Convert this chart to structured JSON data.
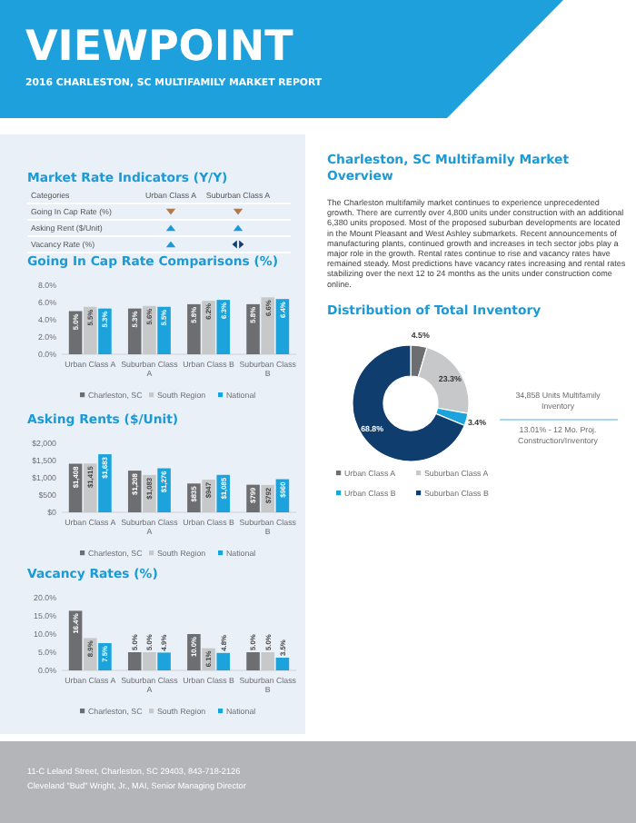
{
  "chart_data": [
    {
      "type": "other",
      "title": "VIEWPOINT",
      "subtitle": "2016 CHARLESTON, SC MULTIFAMILY MARKET REPORT"
    },
    {
      "type": "other",
      "title": "Market Rate Indicators (Y/Y)",
      "annotations": [
        "Categories",
        "Urban Class A",
        "Suburban Class A",
        "Going In Cap Rate (%)",
        "Asking Rent ($/Unit)",
        "Vacancy Rate (%)"
      ]
    },
    {
      "type": "bar",
      "title": "Going In Cap Rate Comparisons (%)",
      "categories": [
        "Urban Class A",
        "Suburban Class A",
        "Urban Class B",
        "Suburban Class B"
      ],
      "series": [
        {
          "name": "Charleston, SC",
          "color": "#6d6e71",
          "values": [
            5.0,
            5.3,
            5.8,
            5.8
          ],
          "value_labels": [
            "5.0%",
            "5.3%",
            "5.8%",
            "5.8%"
          ]
        },
        {
          "name": "South Region",
          "color": "#c7c8ca",
          "values": [
            5.5,
            5.6,
            6.2,
            6.6
          ],
          "value_labels": [
            "5.5%",
            "5.6%",
            "6.2%",
            "6.6%"
          ]
        },
        {
          "name": "National",
          "color": "#1ca3dc",
          "values": [
            5.3,
            5.5,
            6.3,
            6.4
          ],
          "value_labels": [
            "5.3%",
            "5.5%",
            "6.3%",
            "6.4%"
          ]
        }
      ],
      "ylim": [
        0,
        8
      ],
      "yticks": [
        {
          "value": 0,
          "label": "0.0%"
        },
        {
          "value": 2,
          "label": "2.0%"
        },
        {
          "value": 4,
          "label": "4.0%"
        },
        {
          "value": 6,
          "label": "6.0%"
        },
        {
          "value": 8,
          "label": "8.0%"
        }
      ],
      "legend": "bottom"
    },
    {
      "type": "bar",
      "title": "Asking Rents ($/Unit)",
      "categories": [
        "Urban Class A",
        "Suburban Class A",
        "Urban Class B",
        "Suburban Class B"
      ],
      "series": [
        {
          "name": "Charleston, SC",
          "color": "#6d6e71",
          "values": [
            1408,
            1208,
            835,
            799
          ],
          "value_labels": [
            "$1,408",
            "$1,208",
            "$835",
            "$799"
          ]
        },
        {
          "name": "South Region",
          "color": "#c7c8ca",
          "values": [
            1415,
            1083,
            947,
            792
          ],
          "value_labels": [
            "$1,415",
            "$1,083",
            "$947",
            "$792"
          ]
        },
        {
          "name": "National",
          "color": "#1ca3dc",
          "values": [
            1683,
            1276,
            1085,
            960
          ],
          "value_labels": [
            "$1,683",
            "$1,276",
            "$1,085",
            "$960"
          ]
        }
      ],
      "ylim": [
        0,
        2000
      ],
      "yticks": [
        {
          "value": 0,
          "label": "$0"
        },
        {
          "value": 500,
          "label": "$500"
        },
        {
          "value": 1000,
          "label": "$1,000"
        },
        {
          "value": 1500,
          "label": "$1,500"
        },
        {
          "value": 2000,
          "label": "$2,000"
        }
      ],
      "legend": "bottom"
    },
    {
      "type": "bar",
      "title": "Vacancy Rates (%)",
      "categories": [
        "Urban Class A",
        "Suburban Class A",
        "Urban Class B",
        "Suburban Class B"
      ],
      "series": [
        {
          "name": "Charleston, SC",
          "color": "#6d6e71",
          "values": [
            16.4,
            5.0,
            10.0,
            5.0
          ],
          "value_labels": [
            "16.4%",
            "5.0%",
            "10.0%",
            "5.0%"
          ]
        },
        {
          "name": "South Region",
          "color": "#c7c8ca",
          "values": [
            8.9,
            5.0,
            6.1,
            5.0
          ],
          "value_labels": [
            "8.9%",
            "5.0%",
            "6.1%",
            "5.0%"
          ]
        },
        {
          "name": "National",
          "color": "#1ca3dc",
          "values": [
            7.5,
            4.9,
            4.8,
            3.5
          ],
          "value_labels": [
            "7.5%",
            "4.9%",
            "4.8%",
            "3.5%"
          ]
        }
      ],
      "ylim": [
        0,
        20
      ],
      "yticks": [
        {
          "value": 0,
          "label": "0.0%"
        },
        {
          "value": 5,
          "label": "5.0%"
        },
        {
          "value": 10,
          "label": "10.0%"
        },
        {
          "value": 15,
          "label": "15.0%"
        },
        {
          "value": 20,
          "label": "20.0%"
        }
      ],
      "legend": "bottom"
    },
    {
      "type": "other",
      "title": "Charleston, SC Multifamily Market Overview",
      "annotations": [
        "The Charleston multifamily market continues to experience unprecedented growth. There are currently over 4,800 units under construction with an additional 6,380 units proposed. Most of the proposed suburban developments are located in the Mount Pleasant and West Ashley submarkets. Recent announcements of manufacturing plants, continued growth and increases in tech sector jobs play a major role in the growth. Rental rates continue to rise and vacancy rates have remained steady. Most predictions have vacancy rates increasing and rental rates stabilizing over the next 12 to 24 months as the units under construction come online."
      ]
    },
    {
      "type": "donut",
      "title": "Distribution of Total Inventory",
      "categories": [
        "Urban Class A",
        "Suburban Class A",
        "Urban Class B",
        "Suburban Class B"
      ],
      "values": [
        4.5,
        23.3,
        3.4,
        68.8
      ],
      "colors": [
        "#6d6e71",
        "#c7c8ca",
        "#1ca3dc",
        "#0f3d6e"
      ],
      "value_labels": [
        "4.5%",
        "23.3%",
        "3.4%",
        "68.8%"
      ],
      "legend": "bottom",
      "annotations": [
        "34,858 Units Multifamily Inventory",
        "13.01% - 12 Mo. Proj. Construction/Inventory"
      ]
    },
    {
      "type": "other",
      "annotations": [
        "11-C Leland Street, Charleston, SC 29403, 843-718-2126",
        "Cleveland \"Bud\" Wright, Jr., MAI, Senior Managing Director"
      ]
    }
  ]
}
